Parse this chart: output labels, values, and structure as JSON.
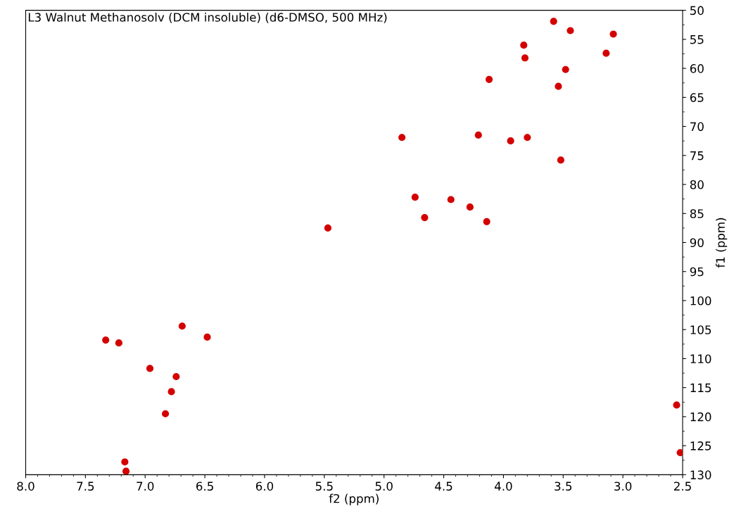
{
  "chart_data": {
    "type": "scatter",
    "title": "L3 Walnut Methanosolv (DCM insoluble) (d6-DMSO, 500 MHz)",
    "xlabel": "f2 (ppm)",
    "ylabel": "f1 (ppm)",
    "xlim": [
      8.0,
      2.5
    ],
    "xticks": [
      {
        "value": 8,
        "label": "8.0"
      },
      7.5,
      {
        "value": 7,
        "label": "7.0"
      },
      6.5,
      {
        "value": 6,
        "label": "6.0"
      },
      5.5,
      {
        "value": 5,
        "label": "5.0"
      },
      4.5,
      {
        "value": 4,
        "label": "4.0"
      },
      3.5,
      {
        "value": 3,
        "label": "3.0"
      },
      2.5
    ],
    "ylim": [
      130,
      50
    ],
    "yticks": [
      50,
      55,
      60,
      65,
      70,
      75,
      80,
      85,
      90,
      95,
      100,
      105,
      110,
      115,
      120,
      125,
      130
    ],
    "grid": false,
    "legend": false,
    "marker": "circle",
    "series": [
      {
        "color": "#d40000",
        "x": [
          3.58,
          3.44,
          3.08,
          3.83,
          3.14,
          3.48,
          3.54,
          4.12,
          3.82,
          4.85,
          4.21,
          3.94,
          3.8,
          5.47,
          4.44,
          4.28,
          4.66,
          4.14,
          4.74,
          3.52,
          6.69,
          6.48,
          7.33,
          7.22,
          6.96,
          6.74,
          6.78,
          6.83,
          7.17,
          7.16,
          2.55,
          2.52
        ],
        "values": [
          51.9,
          53.5,
          54.1,
          56.0,
          57.4,
          60.2,
          63.1,
          61.9,
          58.2,
          71.9,
          71.5,
          72.5,
          71.9,
          87.5,
          82.6,
          83.9,
          85.7,
          86.4,
          82.2,
          75.8,
          104.4,
          106.3,
          106.8,
          107.3,
          111.7,
          113.1,
          115.7,
          119.5,
          127.8,
          129.4,
          118.0,
          126.2
        ]
      }
    ]
  }
}
